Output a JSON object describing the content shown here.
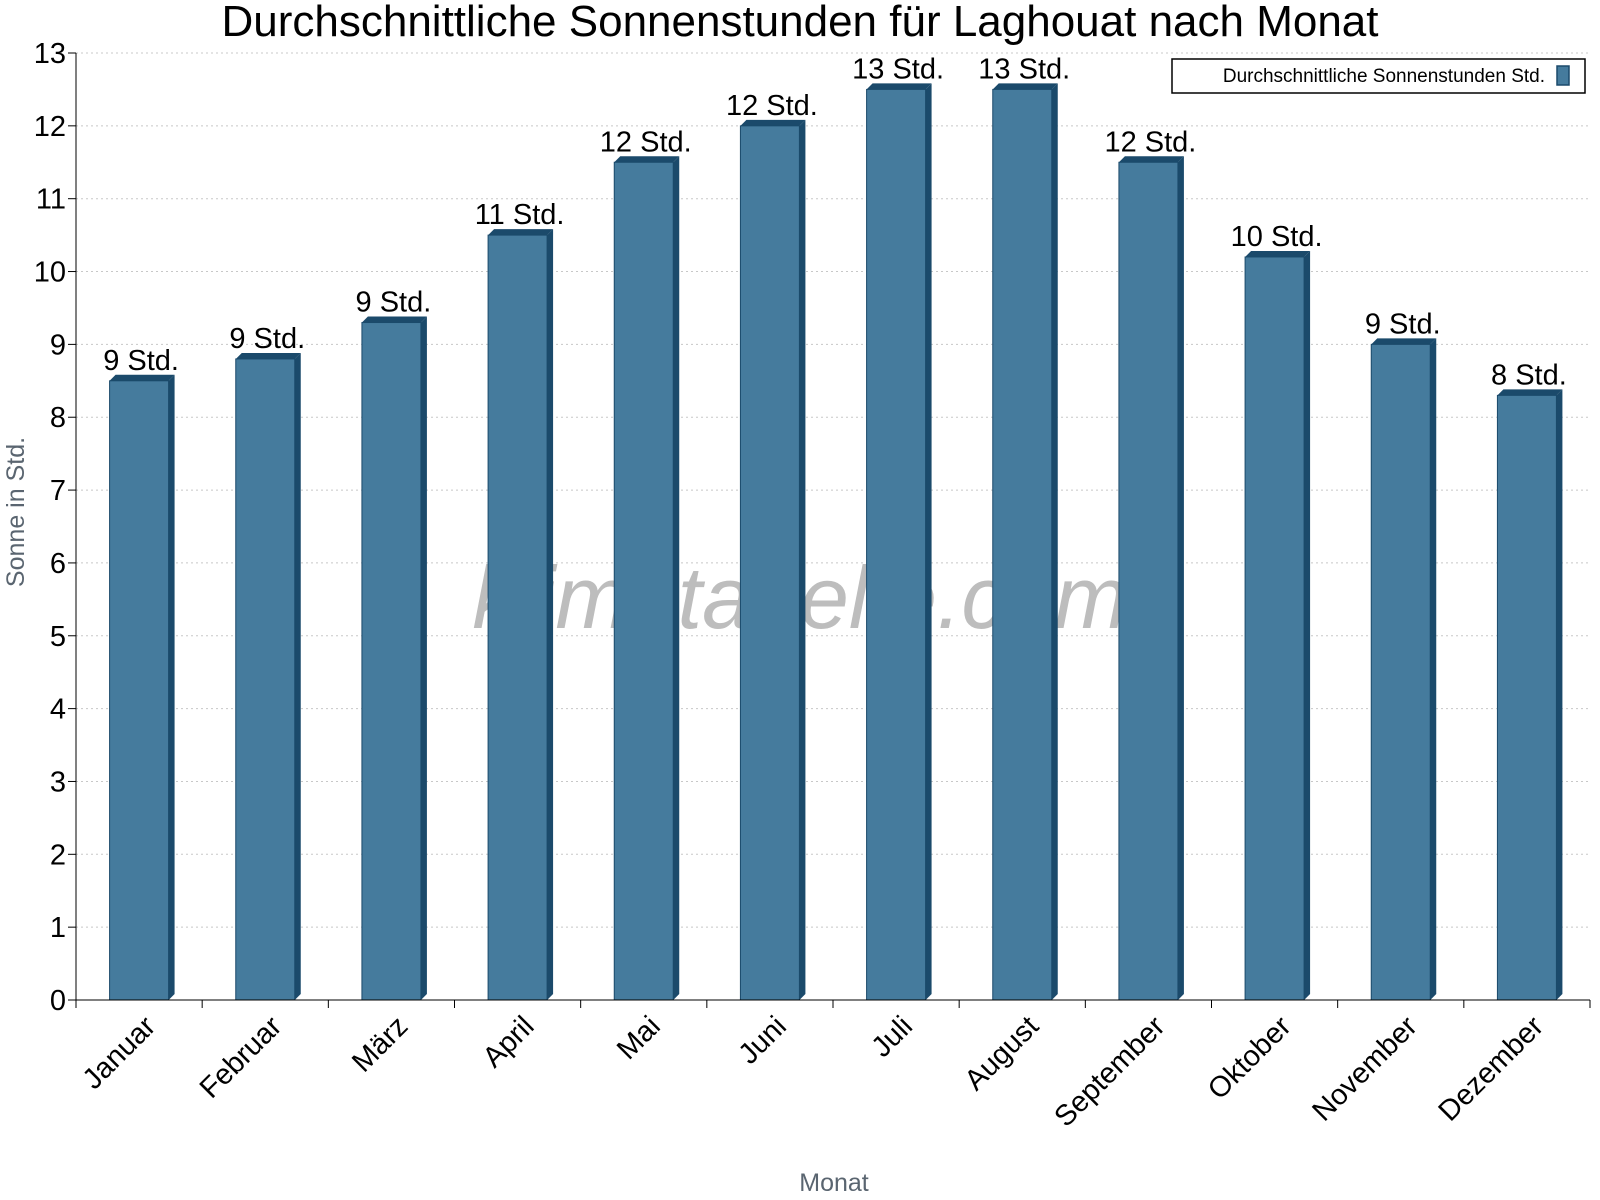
{
  "chart_data": {
    "type": "bar",
    "title": "Durchschnittliche Sonnenstunden für Laghouat nach Monat",
    "xlabel": "Monat",
    "ylabel": "Sonne in Std.",
    "ylim": [
      0,
      13
    ],
    "yticks": [
      "0",
      "1",
      "2",
      "3",
      "4",
      "5",
      "6",
      "7",
      "8",
      "9",
      "10",
      "11",
      "12",
      "13"
    ],
    "grid": "horizontal dotted",
    "legend_position": "top-right",
    "categories": [
      "Januar",
      "Februar",
      "März",
      "April",
      "Mai",
      "Juni",
      "Juli",
      "August",
      "September",
      "Oktober",
      "November",
      "Dezember"
    ],
    "series": [
      {
        "name": "Durchschnittliche Sonnenstunden Std.",
        "color": "#457b9d",
        "values": [
          8.5,
          8.8,
          9.3,
          10.5,
          11.5,
          12.0,
          12.5,
          12.5,
          11.5,
          10.2,
          9.0,
          8.3
        ],
        "labels": [
          "9 Std.",
          "9 Std.",
          "9 Std.",
          "11 Std.",
          "12 Std.",
          "12 Std.",
          "13 Std.",
          "13 Std.",
          "12 Std.",
          "10 Std.",
          "9 Std.",
          "8 Std."
        ]
      }
    ],
    "colors": {
      "bar_front": "#457b9d",
      "bar_side": "#1b4a6b",
      "bar_top": "#1b4a6b",
      "grid": "#c8c8c8",
      "axis": "#000000"
    }
  },
  "watermark": "klimatabelle.com"
}
